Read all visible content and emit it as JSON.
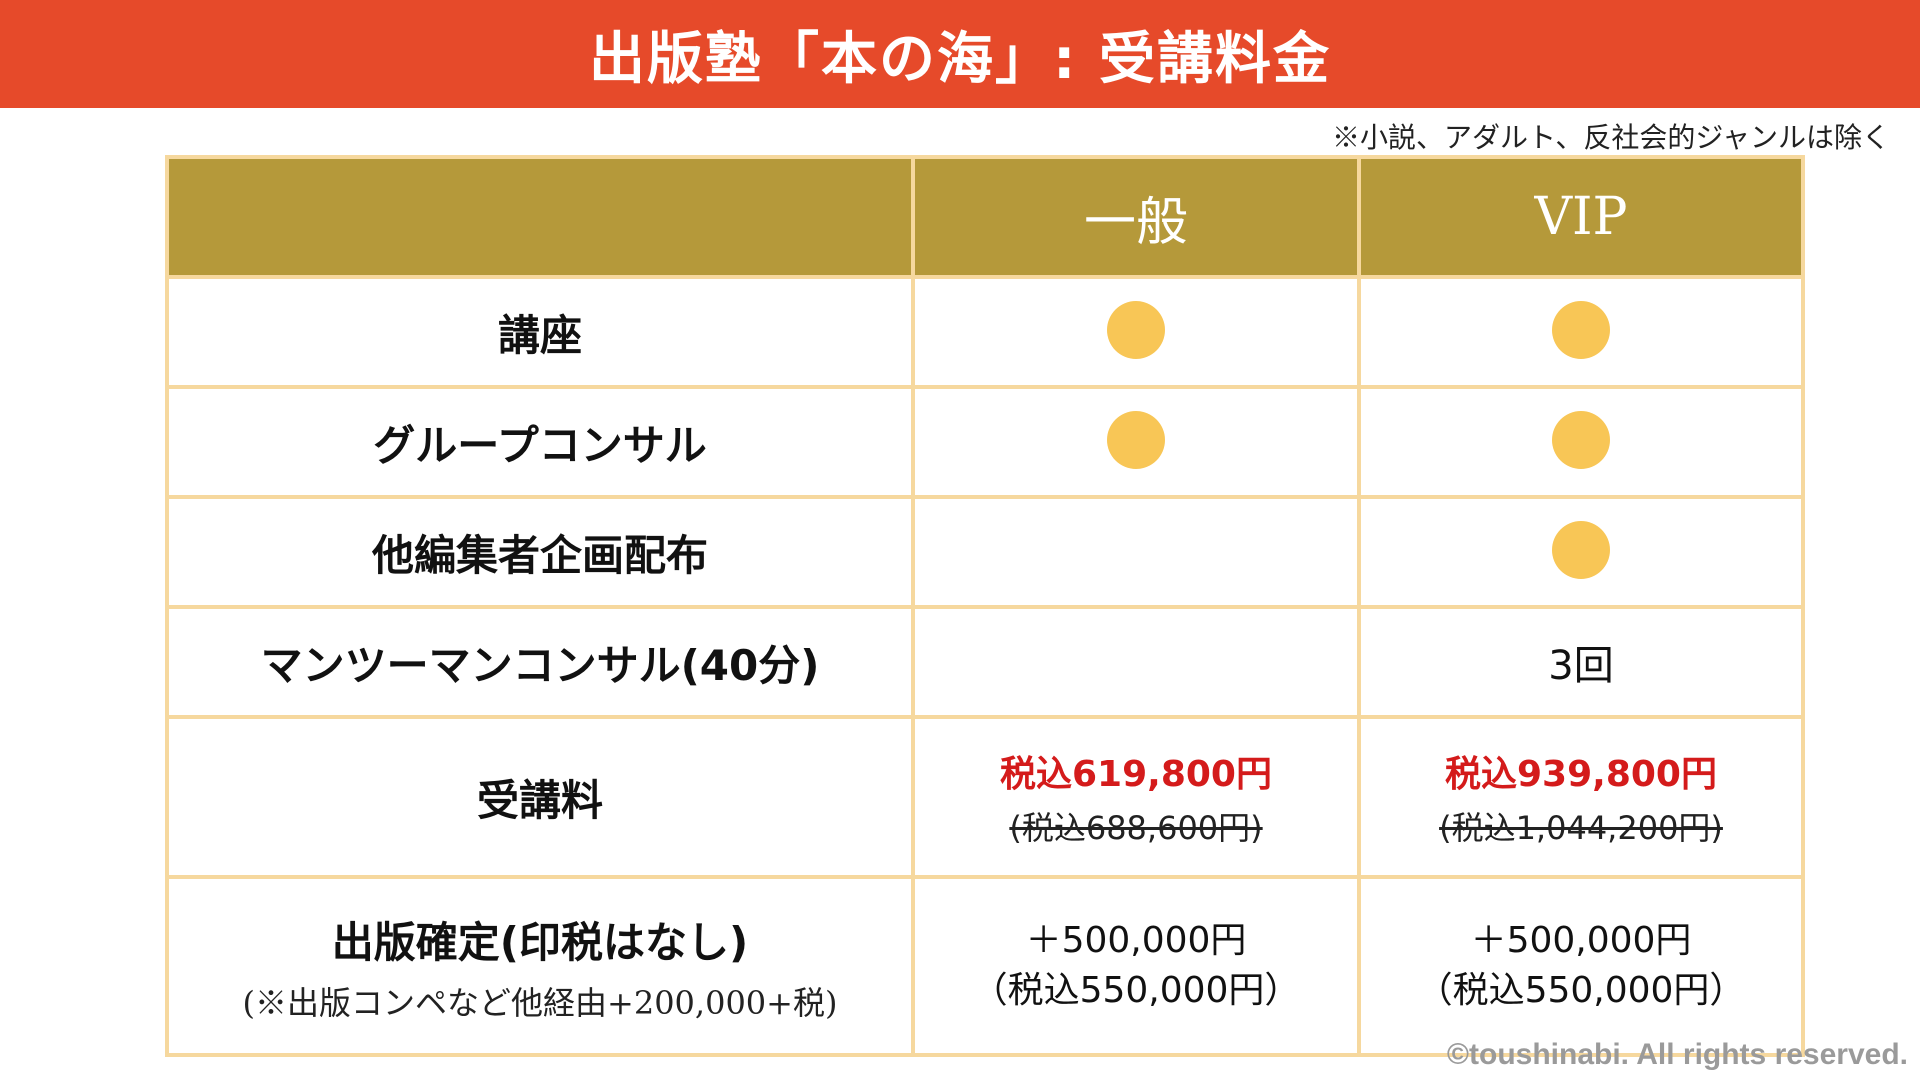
{
  "colors": {
    "banner_bg": "#e64a2a",
    "header_bg": "#b5993a",
    "border": "#f6d89e",
    "dot": "#f8c656",
    "price_red": "#d41b1b"
  },
  "title": "出版塾「本の海」: 受講料金",
  "note": "※小説、アダルト、反社会的ジャンルは除く",
  "table": {
    "header": {
      "col0": "",
      "col1": "一般",
      "col2": "VIP"
    },
    "rows": [
      {
        "label": "講座",
        "general": "dot",
        "vip": "dot"
      },
      {
        "label": "グループコンサル",
        "general": "dot",
        "vip": "dot"
      },
      {
        "label": "他編集者企画配布",
        "general": "",
        "vip": "dot"
      },
      {
        "label": "マンツーマンコンサル(40分)",
        "general": "",
        "vip": "3回"
      },
      {
        "label": "受講料",
        "general_price": "税込619,800円",
        "general_old": "(税込688,600円)",
        "vip_price": "税込939,800円",
        "vip_old": "(税込1,044,200円)"
      },
      {
        "label": "出版確定(印税はなし)",
        "sublabel": "(※出版コンペなど他経由+200,000+税)",
        "general_line1": "＋500,000円",
        "general_line2": "（税込550,000円）",
        "vip_line1": "＋500,000円",
        "vip_line2": "（税込550,000円）"
      }
    ]
  },
  "copyright": "©toushinabi. All rights reserved."
}
